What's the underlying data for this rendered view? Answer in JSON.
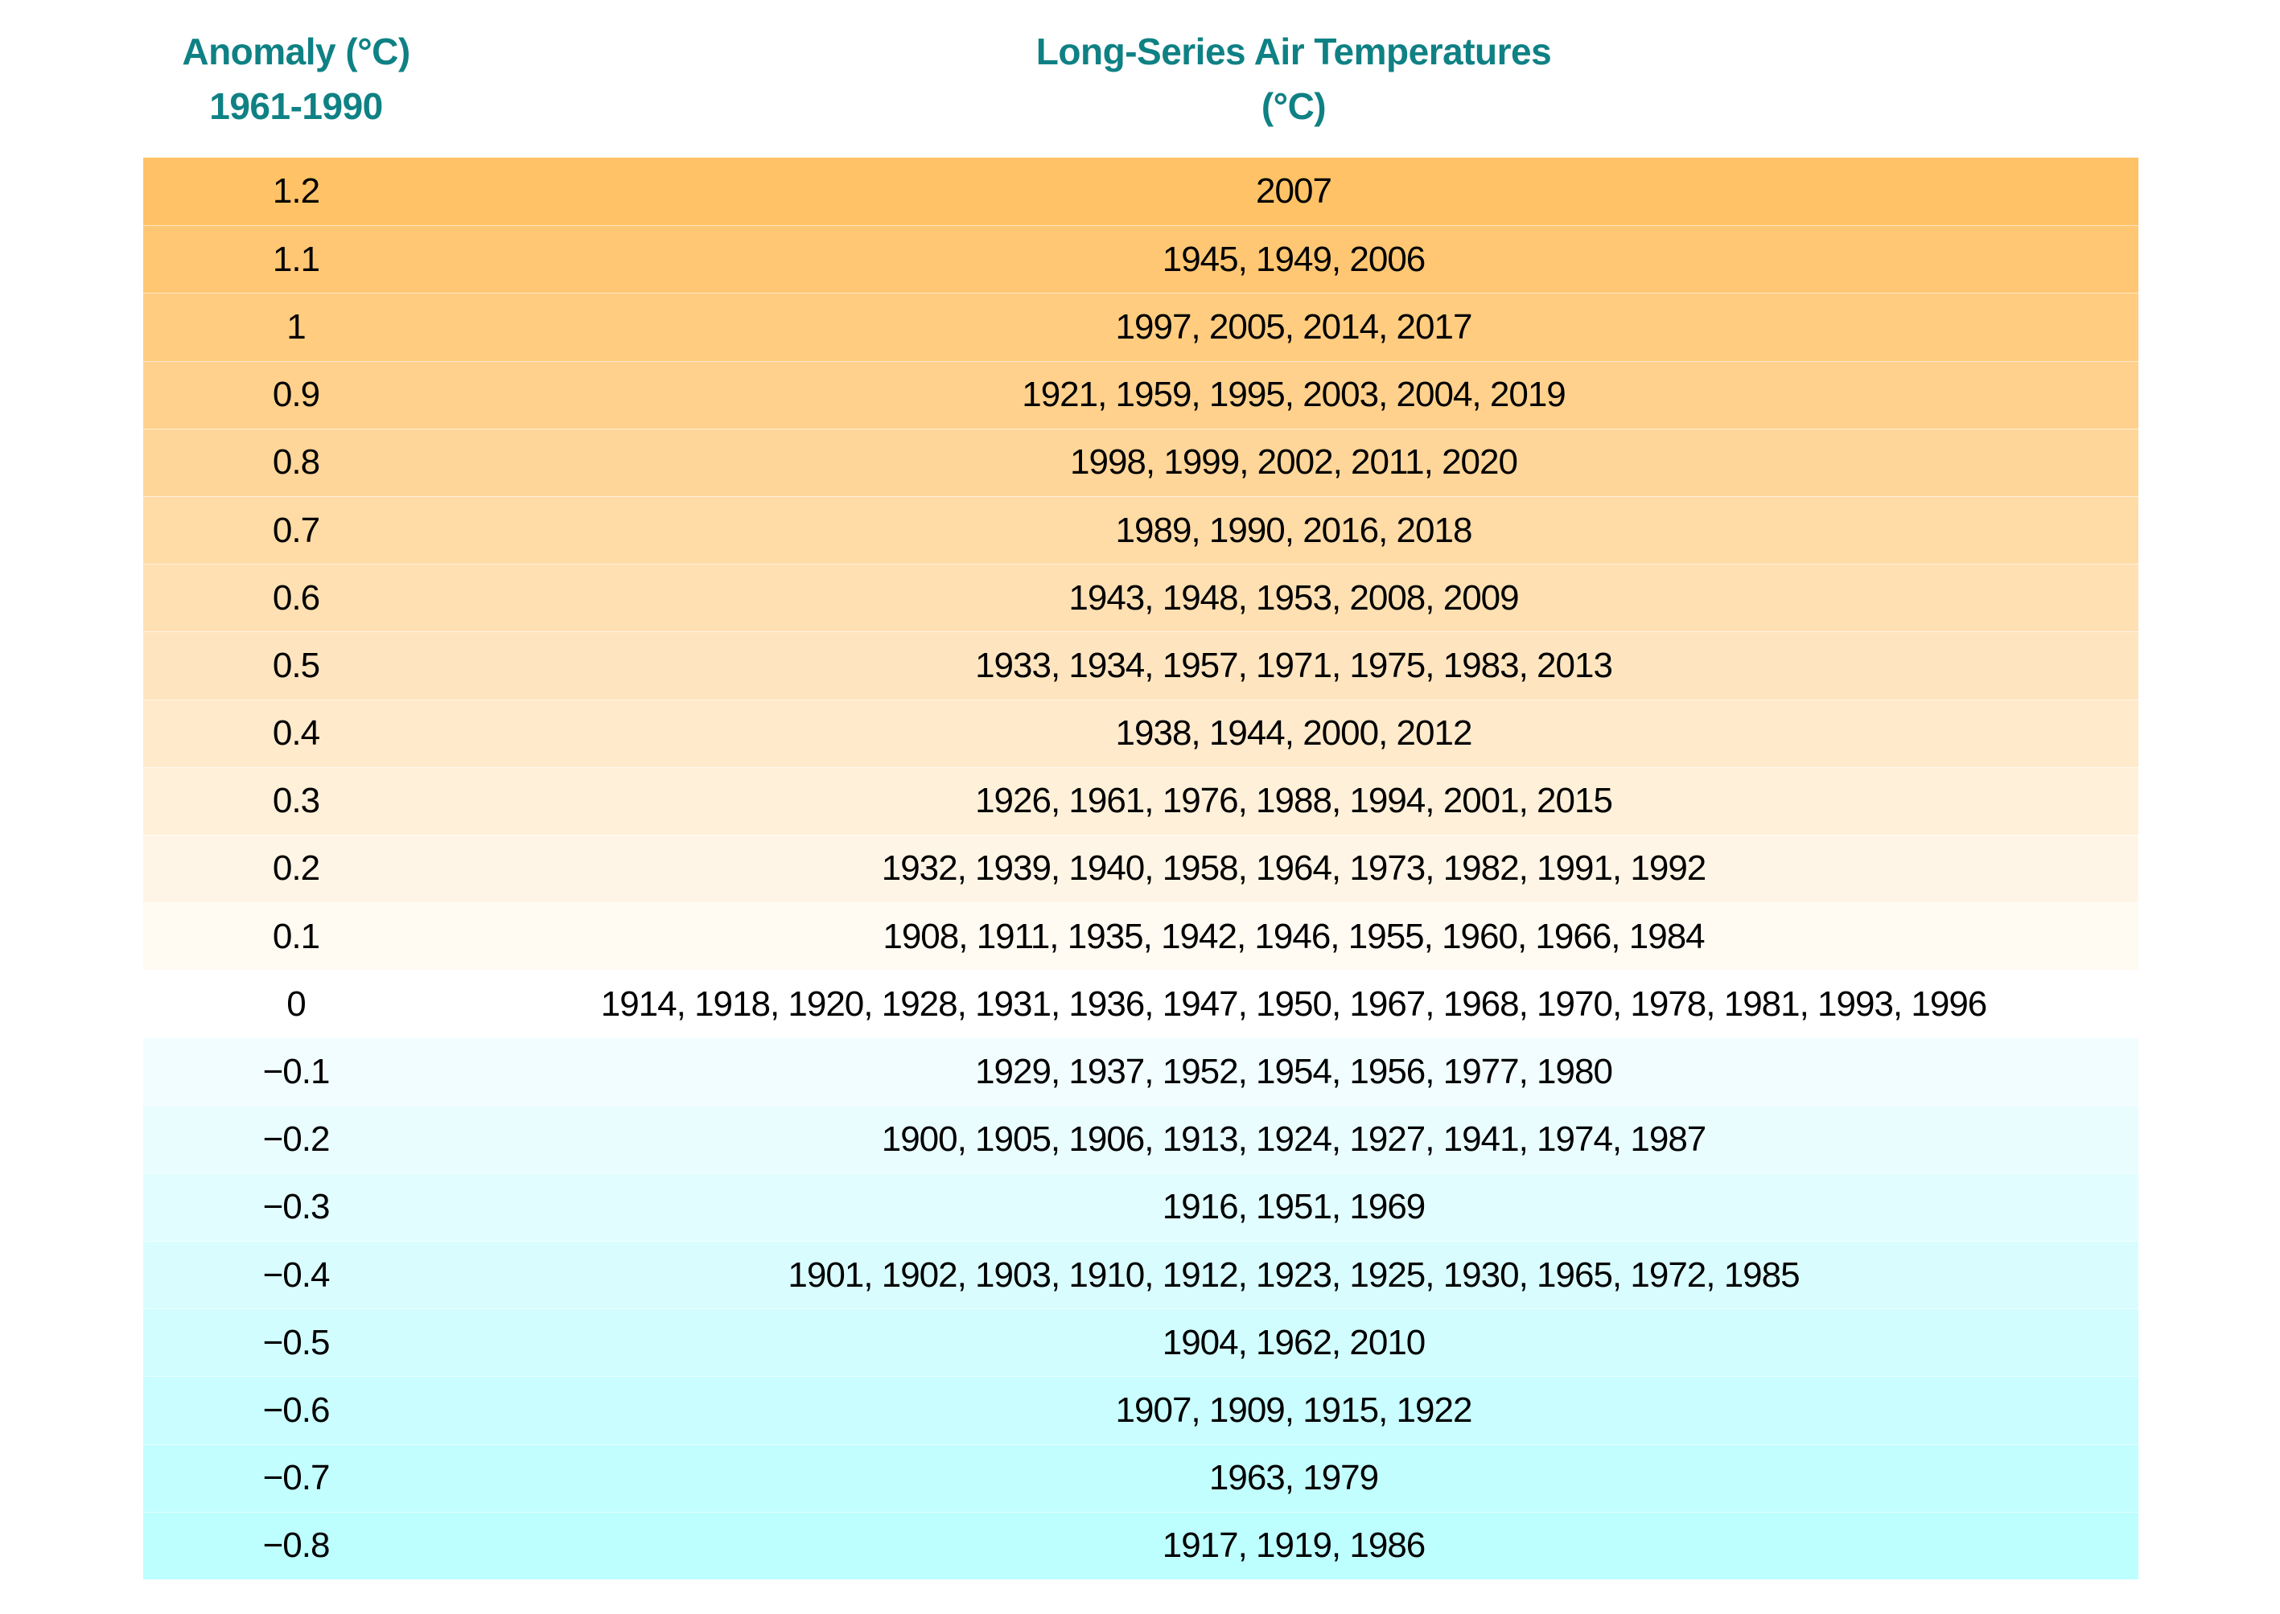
{
  "header": {
    "anomaly_title": "Anomaly (°C)",
    "anomaly_subtitle": "1961-1990",
    "years_title": "Long-Series Air Temperatures",
    "years_subtitle": "(°C)"
  },
  "colors": {
    "header_text": "#0F8184",
    "body_text": "#000000",
    "warm_max": "#FFC266",
    "zero_row": "#FFFFFF",
    "cool_max": "#BDFEFF"
  },
  "chart_data": {
    "type": "table",
    "title": "Long-Series Air Temperatures (°C)",
    "columns": [
      "Anomaly (°C) 1961-1990",
      "Long-Series Air Temperatures (°C)"
    ],
    "rows": [
      {
        "label": "1.2",
        "value": 1.2,
        "bg": "#FFC266",
        "years": [
          2007
        ]
      },
      {
        "label": "1.1",
        "value": 1.1,
        "bg": "#FFC773",
        "years": [
          1945,
          1949,
          2006
        ]
      },
      {
        "label": "1",
        "value": 1.0,
        "bg": "#FFCC80",
        "years": [
          1997,
          2005,
          2014,
          2017
        ]
      },
      {
        "label": "0.9",
        "value": 0.9,
        "bg": "#FFD18C",
        "years": [
          1921,
          1959,
          1995,
          2003,
          2004,
          2019
        ]
      },
      {
        "label": "0.8",
        "value": 0.8,
        "bg": "#FFD699",
        "years": [
          1998,
          1999,
          2002,
          2011,
          2020
        ]
      },
      {
        "label": "0.7",
        "value": 0.7,
        "bg": "#FFDBA6",
        "years": [
          1989,
          1990,
          2016,
          2018
        ]
      },
      {
        "label": "0.6",
        "value": 0.6,
        "bg": "#FFE0B3",
        "years": [
          1943,
          1948,
          1953,
          2008,
          2009
        ]
      },
      {
        "label": "0.5",
        "value": 0.5,
        "bg": "#FFE5BF",
        "years": [
          1933,
          1934,
          1957,
          1971,
          1975,
          1983,
          2013
        ]
      },
      {
        "label": "0.4",
        "value": 0.4,
        "bg": "#FFEACC",
        "years": [
          1938,
          1944,
          2000,
          2012
        ]
      },
      {
        "label": "0.3",
        "value": 0.3,
        "bg": "#FFF0D9",
        "years": [
          1926,
          1961,
          1976,
          1988,
          1994,
          2001,
          2015
        ]
      },
      {
        "label": "0.2",
        "value": 0.2,
        "bg": "#FFF5E6",
        "years": [
          1932,
          1939,
          1940,
          1958,
          1964,
          1973,
          1982,
          1991,
          1992
        ]
      },
      {
        "label": "0.1",
        "value": 0.1,
        "bg": "#FFFAF2",
        "years": [
          1908,
          1911,
          1935,
          1942,
          1946,
          1955,
          1960,
          1966,
          1984
        ]
      },
      {
        "label": "0",
        "value": 0.0,
        "bg": "#FFFFFF",
        "years": [
          1914,
          1918,
          1920,
          1928,
          1931,
          1936,
          1947,
          1950,
          1967,
          1968,
          1970,
          1978,
          1981,
          1993,
          1996
        ]
      },
      {
        "label": "−0.1",
        "value": -0.1,
        "bg": "#F1FDFF",
        "years": [
          1929,
          1937,
          1952,
          1954,
          1956,
          1977,
          1980
        ]
      },
      {
        "label": "−0.2",
        "value": -0.2,
        "bg": "#E9FDFF",
        "years": [
          1900,
          1905,
          1906,
          1913,
          1924,
          1927,
          1941,
          1974,
          1987
        ]
      },
      {
        "label": "−0.3",
        "value": -0.3,
        "bg": "#E1FDFF",
        "years": [
          1916,
          1951,
          1969
        ]
      },
      {
        "label": "−0.4",
        "value": -0.4,
        "bg": "#D9FDFF",
        "years": [
          1901,
          1902,
          1903,
          1910,
          1912,
          1923,
          1925,
          1930,
          1965,
          1972,
          1985
        ]
      },
      {
        "label": "−0.5",
        "value": -0.5,
        "bg": "#D1FDFF",
        "years": [
          1904,
          1962,
          2010
        ]
      },
      {
        "label": "−0.6",
        "value": -0.6,
        "bg": "#C9FDFF",
        "years": [
          1907,
          1909,
          1915,
          1922
        ]
      },
      {
        "label": "−0.7",
        "value": -0.7,
        "bg": "#C3FEFF",
        "years": [
          1963,
          1979
        ]
      },
      {
        "label": "−0.8",
        "value": -0.8,
        "bg": "#BDFEFF",
        "years": [
          1917,
          1919,
          1986
        ]
      }
    ]
  }
}
